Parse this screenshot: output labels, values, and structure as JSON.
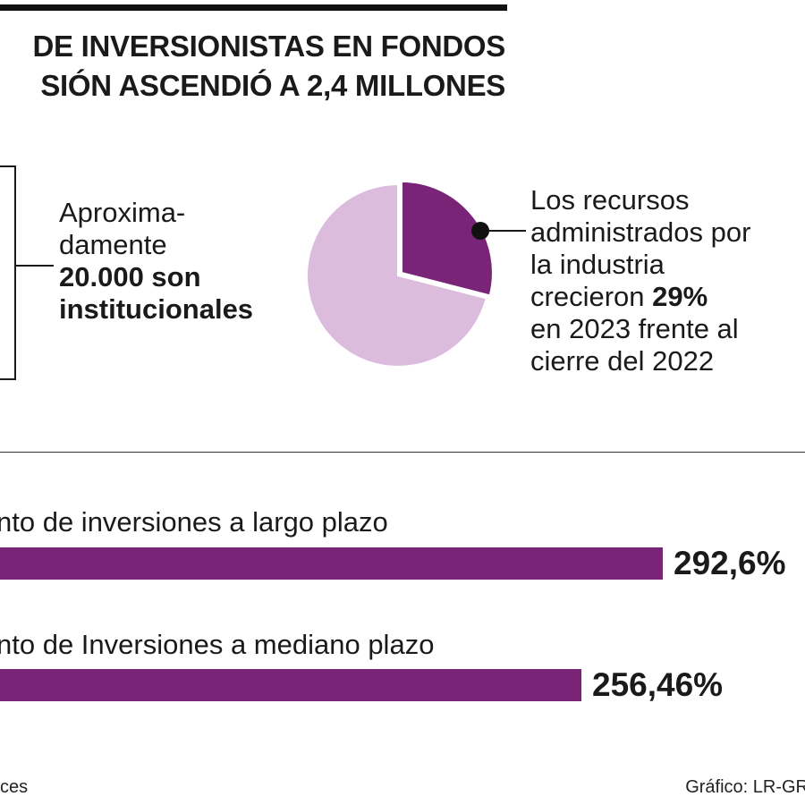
{
  "header": {
    "title_line1": "DE INVERSIONISTAS EN FONDOS",
    "title_line2": "SIÓN ASCENDIÓ A 2,4 MILLONES"
  },
  "left_note": {
    "text": "Aproxima-dame nte",
    "line1": "Aproxima-",
    "line2": "damente",
    "bold1": "20.000 son",
    "bold2": "institucionales"
  },
  "right_note": {
    "line1": "Los recursos",
    "line2": "administrados por",
    "line3": "la industria",
    "line4_pre": "crecieron ",
    "line4_bold": "29%",
    "line5": "en 2023 frente al",
    "line6": "cierre del 2022"
  },
  "colors": {
    "accent": "#7a2478",
    "light": "#dcbcdc",
    "text": "#1a1a1a"
  },
  "chart_data": [
    {
      "type": "pie",
      "title": "",
      "slices": [
        {
          "label": "",
          "value": 29,
          "color": "#7a2478",
          "exploded": true
        },
        {
          "label": "",
          "value": 71,
          "color": "#dcbcdc"
        }
      ]
    },
    {
      "type": "bar",
      "orientation": "horizontal",
      "title": "",
      "categories": [
        "nto de inversiones a largo plazo",
        "nto de Inversiones a mediano plazo"
      ],
      "values": [
        292.6,
        256.46
      ],
      "value_labels": [
        "292,6%",
        "256,46%"
      ],
      "color": "#7a2478"
    }
  ],
  "footer": {
    "source": "ces",
    "credit": "Gráfico: LR-GR"
  }
}
